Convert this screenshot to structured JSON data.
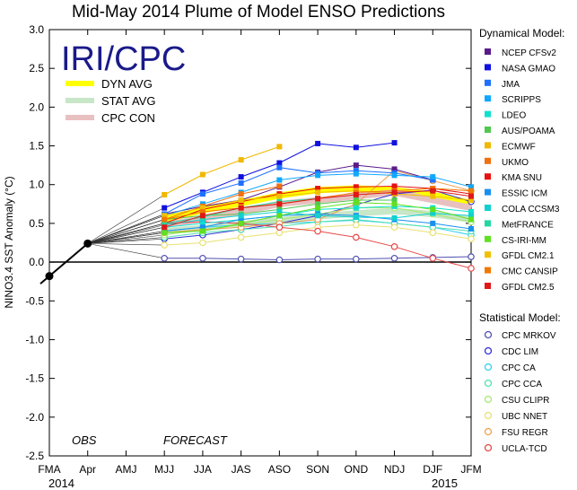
{
  "title": "Mid-May 2014 Plume of Model ENSO Predictions",
  "logo": "IRI/CPC",
  "avg_legend": [
    {
      "label": "DYN AVG",
      "color": "#ffff00"
    },
    {
      "label": "STAT AVG",
      "color": "#c8e6c8"
    },
    {
      "label": "CPC CON",
      "color": "#e8c0c0"
    }
  ],
  "labels": {
    "ylabel": "NINO3.4 SST Anomaly (°C)",
    "obs": "OBS",
    "forecast": "FORECAST",
    "year_start": "2014",
    "year_end": "2015",
    "dyn_header": "Dynamical Model:",
    "stat_header": "Statistical Model:"
  },
  "chart_data": {
    "type": "line",
    "ylim": [
      -2.5,
      3.0
    ],
    "ytick_step": 0.5,
    "x": [
      "FMA",
      "Apr",
      "AMJ",
      "MJJ",
      "JJA",
      "JAS",
      "ASO",
      "SON",
      "OND",
      "NDJ",
      "DJF",
      "JFM"
    ],
    "observed": {
      "x": [
        "FMA",
        "Apr"
      ],
      "values": [
        -0.18,
        0.24
      ]
    },
    "dynamical": [
      {
        "name": "NCEP CFSv2",
        "color": "#5a1a8a",
        "values": [
          0.62,
          0.72,
          0.8,
          0.97,
          1.16,
          1.25,
          1.2,
          1.06,
          null
        ]
      },
      {
        "name": "NASA GMAO",
        "color": "#1010e0",
        "values": [
          0.7,
          0.9,
          1.1,
          1.28,
          1.53,
          1.48,
          1.54,
          null,
          null
        ]
      },
      {
        "name": "JMA",
        "color": "#1e70ff",
        "values": [
          0.62,
          0.88,
          1.02,
          1.22,
          1.15,
          1.18,
          1.15,
          1.06,
          null
        ]
      },
      {
        "name": "SCRIPPS",
        "color": "#10a8ff",
        "values": [
          0.6,
          0.75,
          0.9,
          1.06,
          1.12,
          1.14,
          1.12,
          1.1,
          0.97
        ]
      },
      {
        "name": "LDEO",
        "color": "#10e0d0",
        "values": [
          0.45,
          0.5,
          0.55,
          0.6,
          0.68,
          0.7,
          0.72,
          0.7,
          0.65
        ]
      },
      {
        "name": "AUS/POAMA",
        "color": "#50c850",
        "values": [
          0.55,
          0.6,
          0.62,
          0.68,
          0.75,
          0.8,
          0.8,
          null,
          null
        ]
      },
      {
        "name": "ECMWF",
        "color": "#f0b800",
        "values": [
          0.87,
          1.13,
          1.32,
          1.49,
          null,
          null,
          null,
          null,
          null
        ]
      },
      {
        "name": "UKMO",
        "color": "#f07010",
        "values": [
          0.55,
          0.72,
          0.88,
          0.98,
          null,
          null,
          null,
          null,
          null
        ]
      },
      {
        "name": "KMA SNU",
        "color": "#e81010",
        "values": [
          0.5,
          0.68,
          0.78,
          0.88,
          0.95,
          0.97,
          0.98,
          0.95,
          0.88
        ]
      },
      {
        "name": "ESSIC ICM",
        "color": "#1890f0",
        "values": [
          0.4,
          0.45,
          0.55,
          0.6,
          0.62,
          0.6,
          0.55,
          0.5,
          0.43
        ]
      },
      {
        "name": "COLA CCSM3",
        "color": "#10d0d0",
        "values": [
          0.48,
          0.55,
          0.6,
          0.65,
          0.6,
          0.58,
          0.57,
          0.63,
          0.6
        ]
      },
      {
        "name": "MetFRANCE",
        "color": "#20d8a0",
        "values": [
          0.5,
          0.58,
          0.7,
          0.78,
          0.82,
          null,
          null,
          null,
          null
        ]
      },
      {
        "name": "CS-IRI-MM",
        "color": "#60e020",
        "values": [
          0.38,
          0.4,
          0.5,
          0.6,
          0.7,
          0.77,
          0.75,
          0.68,
          0.55
        ]
      },
      {
        "name": "GFDL CM2.1",
        "color": "#f0c000",
        "values": [
          0.6,
          0.7,
          0.8,
          0.85,
          0.9,
          0.92,
          0.88,
          0.85,
          0.8
        ]
      },
      {
        "name": "CMC CANSIP",
        "color": "#f07800",
        "values": [
          0.55,
          0.65,
          0.7,
          0.75,
          0.82,
          0.9,
          0.92,
          0.95,
          0.92
        ]
      },
      {
        "name": "GFDL CM2.5",
        "color": "#e01818",
        "values": [
          0.45,
          0.6,
          0.7,
          0.75,
          0.82,
          0.87,
          0.9,
          0.92,
          0.85
        ]
      }
    ],
    "statistical": [
      {
        "name": "CPC MRKOV",
        "color": "#5050b0",
        "values": [
          0.05,
          0.05,
          0.04,
          0.03,
          0.04,
          0.04,
          0.05,
          0.06,
          0.07
        ]
      },
      {
        "name": "CDC LIM",
        "color": "#3030d8",
        "values": [
          0.3,
          0.35,
          0.42,
          0.5,
          0.6,
          0.74,
          0.88,
          0.93,
          0.78
        ]
      },
      {
        "name": "CPC CA",
        "color": "#30d0f0",
        "values": [
          0.4,
          0.45,
          0.48,
          0.5,
          0.52,
          0.54,
          0.5,
          0.45,
          0.35
        ]
      },
      {
        "name": "CPC CCA",
        "color": "#50e0b0",
        "values": [
          0.32,
          0.38,
          0.42,
          0.46,
          0.52,
          0.55,
          0.5,
          0.45,
          0.4
        ]
      },
      {
        "name": "CSU CLIPR",
        "color": "#a8e870",
        "values": [
          0.35,
          0.42,
          0.48,
          0.55,
          0.62,
          0.7,
          0.7,
          0.62,
          0.52
        ]
      },
      {
        "name": "UBC NNET",
        "color": "#e8e070",
        "values": [
          0.22,
          0.25,
          0.32,
          0.38,
          0.45,
          0.48,
          0.45,
          0.38,
          0.3
        ]
      },
      {
        "name": "FSU REGR",
        "color": "#f0a050",
        "values": [
          0.38,
          0.42,
          0.45,
          0.5,
          0.55,
          0.75,
          1.18,
          1.05,
          0.92
        ]
      },
      {
        "name": "UCLA-TCD",
        "color": "#e84848",
        "values": [
          0.5,
          0.52,
          0.5,
          0.45,
          0.4,
          0.32,
          0.2,
          0.05,
          -0.08
        ]
      }
    ],
    "averages": [
      {
        "name": "DYN AVG",
        "color": "#ffff00",
        "values": [
          0.55,
          0.67,
          0.76,
          0.86,
          0.93,
          0.95,
          0.93,
          0.87,
          0.76
        ]
      },
      {
        "name": "STAT AVG",
        "color": "#c8e6c8",
        "values": [
          0.4,
          0.44,
          0.49,
          0.54,
          0.59,
          0.63,
          0.66,
          0.62,
          0.55
        ]
      },
      {
        "name": "CPC CON",
        "color": "#e8c0c0",
        "values": [
          0.48,
          0.56,
          0.65,
          0.75,
          0.8,
          0.85,
          0.9,
          0.8,
          0.7
        ]
      }
    ]
  }
}
